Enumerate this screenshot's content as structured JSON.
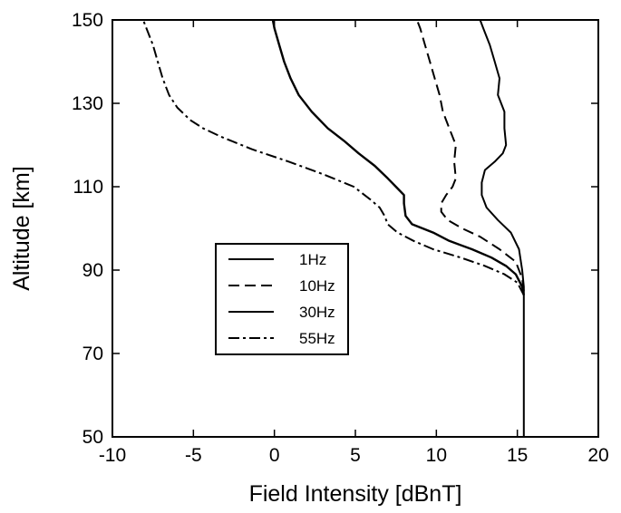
{
  "chart_data": {
    "type": "line",
    "title": "",
    "xlabel": "Field Intensity [dBnT]",
    "ylabel": "Altitude [km]",
    "xlim": [
      -10,
      20
    ],
    "ylim": [
      50,
      150
    ],
    "xticks": [
      -10,
      -5,
      0,
      5,
      10,
      15,
      20
    ],
    "yticks": [
      50,
      70,
      90,
      110,
      130,
      150
    ],
    "grid": false,
    "legend_position": "center-left",
    "series": [
      {
        "name": "1Hz",
        "style": "solid",
        "points": [
          [
            15.4,
            50
          ],
          [
            15.4,
            80
          ],
          [
            15.4,
            86
          ],
          [
            15.3,
            90
          ],
          [
            15.1,
            95
          ],
          [
            14.6,
            99
          ],
          [
            13.8,
            102
          ],
          [
            13.1,
            105
          ],
          [
            12.8,
            108
          ],
          [
            12.8,
            111
          ],
          [
            13.0,
            114
          ],
          [
            13.6,
            116
          ],
          [
            14.1,
            118
          ],
          [
            14.3,
            120
          ],
          [
            14.2,
            124
          ],
          [
            14.2,
            128
          ],
          [
            13.8,
            132
          ],
          [
            13.9,
            136
          ],
          [
            13.6,
            140
          ],
          [
            13.3,
            144
          ],
          [
            12.9,
            148
          ],
          [
            12.7,
            150
          ]
        ]
      },
      {
        "name": "10Hz",
        "style": "dashed",
        "points": [
          [
            15.4,
            85
          ],
          [
            15.3,
            88
          ],
          [
            14.9,
            92
          ],
          [
            13.9,
            95
          ],
          [
            12.7,
            98
          ],
          [
            11.6,
            100
          ],
          [
            10.7,
            102
          ],
          [
            10.3,
            104
          ],
          [
            10.3,
            106
          ],
          [
            10.6,
            108
          ],
          [
            11.0,
            110
          ],
          [
            11.2,
            112
          ],
          [
            11.1,
            116
          ],
          [
            11.2,
            120
          ],
          [
            10.8,
            124
          ],
          [
            10.4,
            128
          ],
          [
            10.2,
            132
          ],
          [
            9.9,
            136
          ],
          [
            9.6,
            140
          ],
          [
            9.3,
            144
          ],
          [
            9.0,
            148
          ],
          [
            8.8,
            150
          ]
        ]
      },
      {
        "name": "30Hz",
        "style": "solid",
        "points": [
          [
            15.4,
            84
          ],
          [
            15.3,
            86
          ],
          [
            14.9,
            89
          ],
          [
            14.3,
            91
          ],
          [
            13.4,
            93
          ],
          [
            12.2,
            95
          ],
          [
            10.8,
            97
          ],
          [
            9.8,
            99
          ],
          [
            8.5,
            101
          ],
          [
            8.1,
            103
          ],
          [
            8.0,
            106
          ],
          [
            8.0,
            108
          ],
          [
            7.5,
            110
          ],
          [
            7.0,
            112
          ],
          [
            6.2,
            115
          ],
          [
            5.2,
            118
          ],
          [
            4.3,
            121
          ],
          [
            3.3,
            124
          ],
          [
            2.3,
            128
          ],
          [
            1.5,
            132
          ],
          [
            1.0,
            136
          ],
          [
            0.6,
            140
          ],
          [
            0.3,
            144
          ],
          [
            0.0,
            148
          ],
          [
            -0.1,
            150
          ]
        ]
      },
      {
        "name": "55Hz",
        "style": "dashdot",
        "points": [
          [
            15.4,
            84
          ],
          [
            15.0,
            87
          ],
          [
            14.2,
            89
          ],
          [
            13.0,
            91
          ],
          [
            11.5,
            93
          ],
          [
            9.8,
            95
          ],
          [
            8.6,
            97
          ],
          [
            7.6,
            99
          ],
          [
            7.0,
            101
          ],
          [
            6.8,
            103
          ],
          [
            6.5,
            105
          ],
          [
            5.9,
            107
          ],
          [
            4.9,
            110
          ],
          [
            3.0,
            113
          ],
          [
            0.9,
            116
          ],
          [
            -1.4,
            119
          ],
          [
            -3.3,
            122
          ],
          [
            -4.4,
            124
          ],
          [
            -5.2,
            126
          ],
          [
            -6.0,
            129
          ],
          [
            -6.5,
            132
          ],
          [
            -6.9,
            136
          ],
          [
            -7.2,
            140
          ],
          [
            -7.5,
            144
          ],
          [
            -7.8,
            147
          ],
          [
            -8.1,
            150
          ]
        ]
      }
    ]
  },
  "colors": {
    "line": "#000000",
    "background": "#ffffff"
  }
}
